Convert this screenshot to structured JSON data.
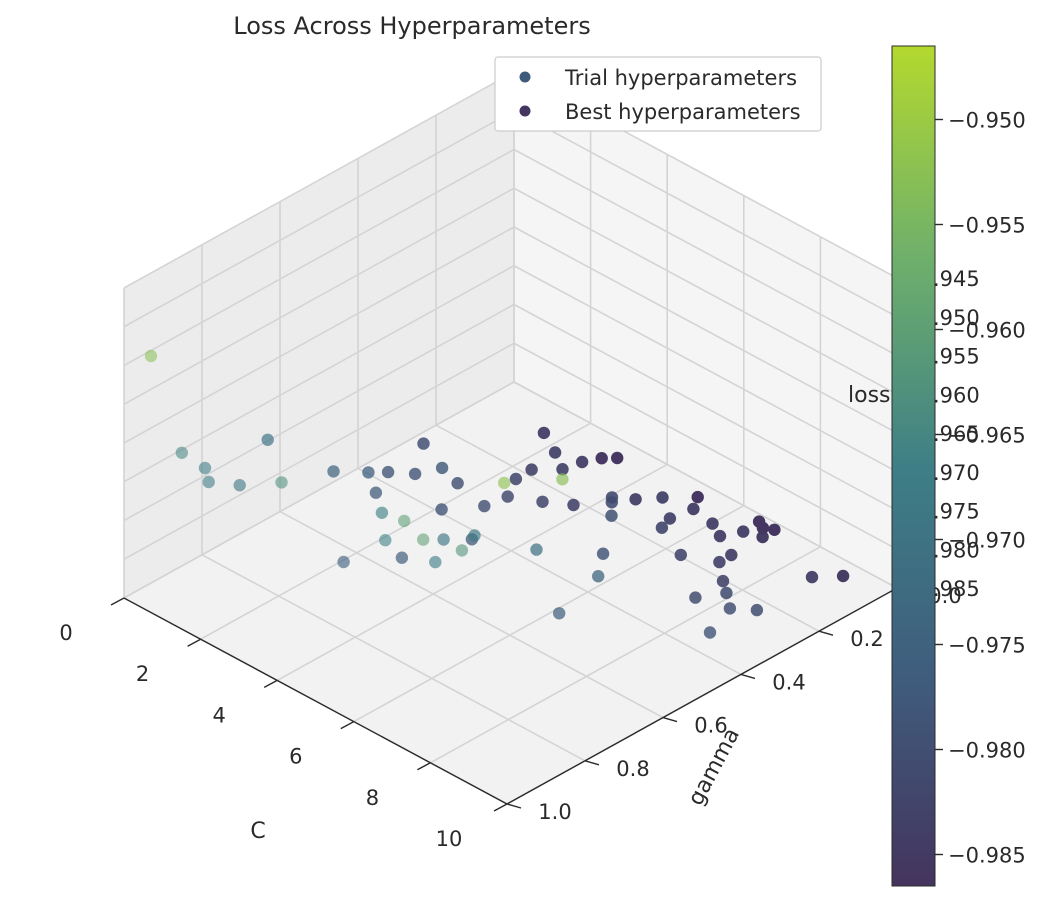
{
  "chart_data": {
    "type": "scatter3d",
    "title": "Loss Across Hyperparameters",
    "xlabel": "C",
    "ylabel": "gamma",
    "zlabel": "loss",
    "xlim": [
      0,
      10
    ],
    "ylim": [
      0,
      1.0
    ],
    "zlim": [
      -0.985,
      -0.945
    ],
    "x_ticks": [
      "0",
      "2",
      "4",
      "6",
      "8",
      "10"
    ],
    "y_ticks": [
      "0.0",
      "0.2",
      "0.4",
      "0.6",
      "0.8",
      "1.0"
    ],
    "z_ticks": [
      "-0.985",
      "-0.980",
      "-0.975",
      "-0.970",
      "-0.965",
      "-0.960",
      "-0.955",
      "-0.950",
      "-0.945"
    ],
    "colorbar": {
      "range": [
        -0.9865,
        -0.9465
      ],
      "ticks": [
        "-0.950",
        "-0.955",
        "-0.960",
        "-0.965",
        "-0.970",
        "-0.975",
        "-0.980",
        "-0.985"
      ],
      "colormap": "viridis"
    },
    "legend": {
      "placement": "upper-right",
      "entries": [
        "Trial hyperparameters",
        "Best hyperparameters"
      ]
    },
    "series": [
      {
        "name": "Trial hyperparameters",
        "points": [
          [
            0.5,
            0.98,
            -0.953
          ],
          [
            8.4,
            0.85,
            -0.952
          ],
          [
            8.9,
            0.75,
            -0.953
          ],
          [
            6.5,
            0.92,
            -0.96
          ],
          [
            7.2,
            0.94,
            -0.96
          ],
          [
            7.6,
            0.88,
            -0.962
          ],
          [
            3.4,
            0.93,
            -0.963
          ],
          [
            4.9,
            0.82,
            -0.966
          ],
          [
            5.6,
            0.88,
            -0.966
          ],
          [
            6.3,
            0.72,
            -0.968
          ],
          [
            6.6,
            0.85,
            -0.967
          ],
          [
            5.8,
            0.75,
            -0.969
          ],
          [
            6.9,
            0.62,
            -0.971
          ],
          [
            7.8,
            0.55,
            -0.974
          ],
          [
            1.0,
            0.95,
            -0.965
          ],
          [
            1.3,
            0.92,
            -0.967
          ],
          [
            1.5,
            0.93,
            -0.968
          ],
          [
            1.8,
            0.88,
            -0.969
          ],
          [
            0.9,
            0.72,
            -0.97
          ],
          [
            1.6,
            0.62,
            -0.975
          ],
          [
            1.9,
            0.56,
            -0.976
          ],
          [
            2.3,
            0.58,
            -0.977
          ],
          [
            2.4,
            0.42,
            -0.978
          ],
          [
            1.2,
            0.35,
            -0.98
          ],
          [
            1.6,
            0.48,
            -0.979
          ],
          [
            2.0,
            0.45,
            -0.979
          ],
          [
            2.6,
            0.4,
            -0.98
          ],
          [
            3.9,
            0.82,
            -0.975
          ],
          [
            4.2,
            0.7,
            -0.977
          ],
          [
            4.5,
            0.55,
            -0.978
          ],
          [
            3.2,
            0.5,
            -0.979
          ],
          [
            3.5,
            0.42,
            -0.98
          ],
          [
            3.4,
            0.35,
            -0.981
          ],
          [
            3.8,
            0.3,
            -0.982
          ],
          [
            4.1,
            0.25,
            -0.983
          ],
          [
            2.9,
            0.28,
            -0.982
          ],
          [
            3.1,
            0.18,
            -0.983
          ],
          [
            2.7,
            0.22,
            -0.983
          ],
          [
            5.6,
            0.3,
            -0.979
          ],
          [
            5.1,
            0.25,
            -0.98
          ],
          [
            4.8,
            0.22,
            -0.981
          ],
          [
            6.9,
            0.25,
            -0.982
          ],
          [
            6.0,
            0.21,
            -0.982
          ],
          [
            5.7,
            0.16,
            -0.983
          ],
          [
            6.4,
            0.4,
            -0.979
          ],
          [
            6.2,
            0.1,
            -0.984
          ],
          [
            6.6,
            0.12,
            -0.984
          ],
          [
            6.8,
            0.08,
            -0.984
          ],
          [
            7.2,
            0.15,
            -0.984
          ],
          [
            7.4,
            0.2,
            -0.983
          ],
          [
            7.9,
            0.24,
            -0.983
          ],
          [
            5.1,
            0.12,
            -0.983
          ],
          [
            5.6,
            0.09,
            -0.984
          ],
          [
            8.3,
            0.35,
            -0.981
          ],
          [
            8.6,
            0.3,
            -0.981
          ],
          [
            9.2,
            0.35,
            -0.98
          ],
          [
            9.6,
            0.32,
            -0.98
          ],
          [
            9.7,
            0.45,
            -0.979
          ],
          [
            7.8,
            0.65,
            -0.976
          ],
          [
            2.6,
            0.15,
            -0.983
          ],
          [
            3.0,
            0.12,
            -0.984
          ],
          [
            4.6,
            0.14,
            -0.984
          ],
          [
            7.0,
            0.05,
            -0.985
          ],
          [
            8.8,
            0.1,
            -0.984
          ],
          [
            9.0,
            0.04,
            -0.985
          ],
          [
            1.8,
            0.1,
            -0.984
          ]
        ]
      },
      {
        "name": "Best hyperparameters",
        "points": [
          [
            2.8,
            0.05,
            -0.986
          ],
          [
            3.0,
            0.03,
            -0.986
          ],
          [
            5.0,
            0.02,
            -0.986
          ],
          [
            6.4,
            0.0,
            -0.986
          ],
          [
            6.6,
            0.01,
            -0.986
          ],
          [
            6.8,
            0.0,
            -0.986
          ]
        ]
      }
    ]
  }
}
